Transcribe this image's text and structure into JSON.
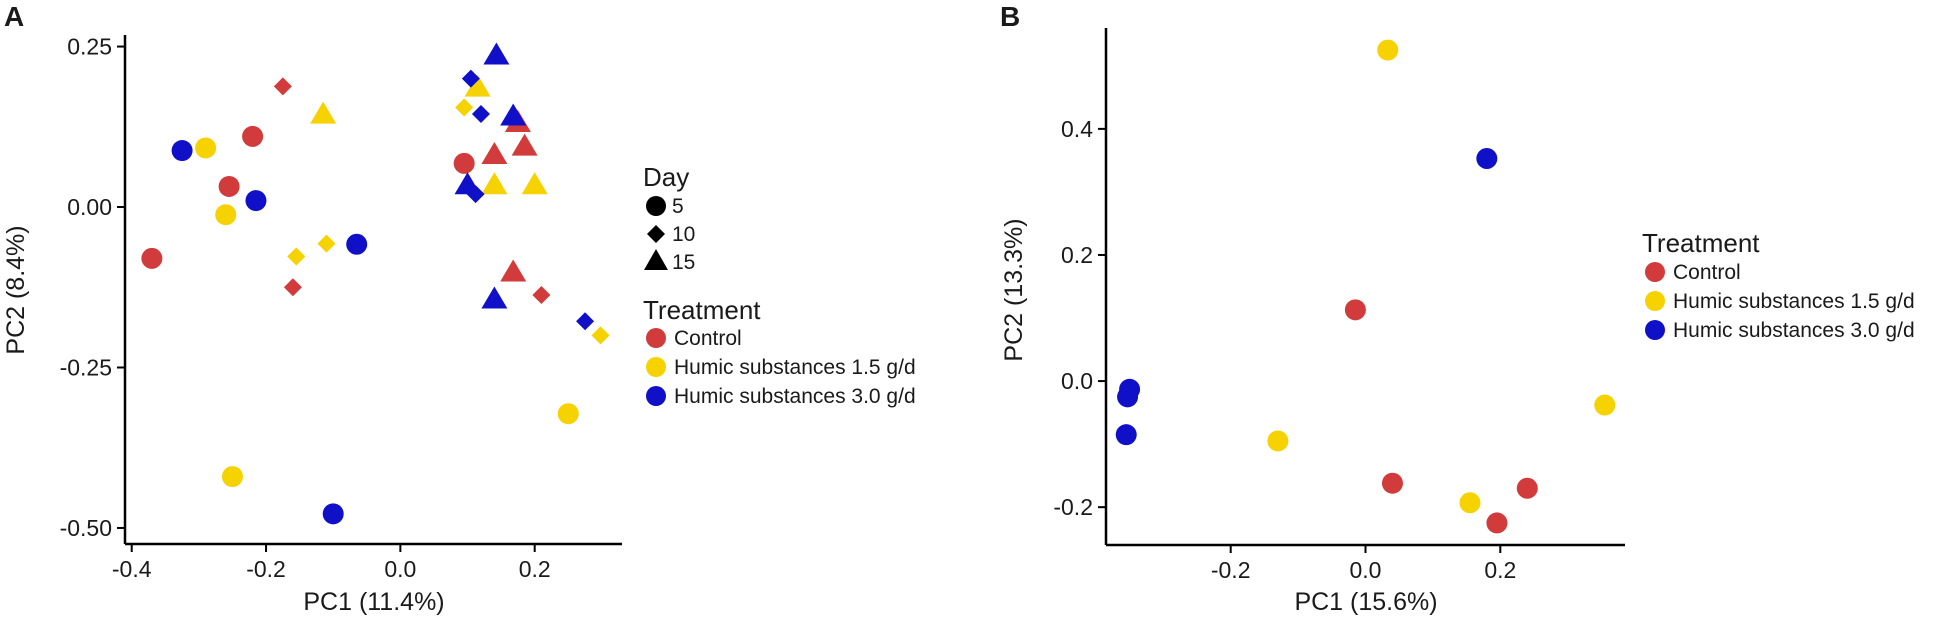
{
  "colors": {
    "Control": "#d13b3b",
    "Humic substances 1.5 g/d": "#f5d200",
    "Humic substances 3.0 g/d": "#1010c8",
    "axis": "#000000",
    "text": "#1a1a1a"
  },
  "chart_data": [
    {
      "type": "scatter",
      "panel": "A",
      "xlabel": "PC1 (11.4%)",
      "ylabel": "PC2 (8.4%)",
      "xlim": [
        -0.41,
        0.33
      ],
      "ylim": [
        -0.525,
        0.268
      ],
      "xticks": [
        -0.4,
        -0.2,
        0.0,
        0.2
      ],
      "xtick_labels": [
        "-0.4",
        "-0.2",
        "0.0",
        "0.2"
      ],
      "yticks": [
        0.25,
        0.0,
        -0.25,
        -0.5
      ],
      "ytick_labels": [
        "0.25",
        "0.00",
        "-0.25",
        "-0.50"
      ],
      "legend_day": {
        "title": "Day",
        "items": [
          {
            "shape": "circle",
            "label": "5"
          },
          {
            "shape": "diamond",
            "label": "10"
          },
          {
            "shape": "triangle",
            "label": "15"
          }
        ]
      },
      "legend_treatment": {
        "title": "Treatment",
        "items": [
          "Control",
          "Humic substances 1.5 g/d",
          "Humic substances 3.0 g/d"
        ]
      },
      "points": [
        {
          "x": -0.37,
          "y": -0.08,
          "shape": "circle",
          "group": "Control"
        },
        {
          "x": -0.255,
          "y": 0.032,
          "shape": "circle",
          "group": "Control"
        },
        {
          "x": -0.22,
          "y": 0.11,
          "shape": "circle",
          "group": "Control"
        },
        {
          "x": 0.095,
          "y": 0.068,
          "shape": "circle",
          "group": "Control"
        },
        {
          "x": -0.175,
          "y": 0.188,
          "shape": "diamond",
          "group": "Control"
        },
        {
          "x": -0.16,
          "y": -0.125,
          "shape": "diamond",
          "group": "Control"
        },
        {
          "x": 0.21,
          "y": -0.137,
          "shape": "diamond",
          "group": "Control"
        },
        {
          "x": 0.175,
          "y": 0.13,
          "shape": "triangle",
          "group": "Control"
        },
        {
          "x": 0.185,
          "y": 0.093,
          "shape": "triangle",
          "group": "Control"
        },
        {
          "x": 0.14,
          "y": 0.08,
          "shape": "triangle",
          "group": "Control"
        },
        {
          "x": 0.168,
          "y": -0.103,
          "shape": "triangle",
          "group": "Control"
        },
        {
          "x": -0.29,
          "y": 0.092,
          "shape": "circle",
          "group": "Humic substances 1.5 g/d"
        },
        {
          "x": -0.26,
          "y": -0.012,
          "shape": "circle",
          "group": "Humic substances 1.5 g/d"
        },
        {
          "x": 0.25,
          "y": -0.322,
          "shape": "circle",
          "group": "Humic substances 1.5 g/d"
        },
        {
          "x": -0.25,
          "y": -0.42,
          "shape": "circle",
          "group": "Humic substances 1.5 g/d"
        },
        {
          "x": -0.155,
          "y": -0.077,
          "shape": "diamond",
          "group": "Humic substances 1.5 g/d"
        },
        {
          "x": -0.11,
          "y": -0.057,
          "shape": "diamond",
          "group": "Humic substances 1.5 g/d"
        },
        {
          "x": 0.095,
          "y": 0.155,
          "shape": "diamond",
          "group": "Humic substances 1.5 g/d"
        },
        {
          "x": 0.298,
          "y": -0.2,
          "shape": "diamond",
          "group": "Humic substances 1.5 g/d"
        },
        {
          "x": -0.115,
          "y": 0.143,
          "shape": "triangle",
          "group": "Humic substances 1.5 g/d"
        },
        {
          "x": 0.115,
          "y": 0.185,
          "shape": "triangle",
          "group": "Humic substances 1.5 g/d"
        },
        {
          "x": 0.14,
          "y": 0.033,
          "shape": "triangle",
          "group": "Humic substances 1.5 g/d"
        },
        {
          "x": 0.2,
          "y": 0.033,
          "shape": "triangle",
          "group": "Humic substances 1.5 g/d"
        },
        {
          "x": -0.325,
          "y": 0.088,
          "shape": "circle",
          "group": "Humic substances 3.0 g/d"
        },
        {
          "x": -0.215,
          "y": 0.01,
          "shape": "circle",
          "group": "Humic substances 3.0 g/d"
        },
        {
          "x": -0.065,
          "y": -0.058,
          "shape": "circle",
          "group": "Humic substances 3.0 g/d"
        },
        {
          "x": -0.1,
          "y": -0.478,
          "shape": "circle",
          "group": "Humic substances 3.0 g/d"
        },
        {
          "x": 0.105,
          "y": 0.2,
          "shape": "diamond",
          "group": "Humic substances 3.0 g/d"
        },
        {
          "x": 0.12,
          "y": 0.145,
          "shape": "diamond",
          "group": "Humic substances 3.0 g/d"
        },
        {
          "x": 0.112,
          "y": 0.02,
          "shape": "diamond",
          "group": "Humic substances 3.0 g/d"
        },
        {
          "x": 0.275,
          "y": -0.178,
          "shape": "diamond",
          "group": "Humic substances 3.0 g/d"
        },
        {
          "x": 0.143,
          "y": 0.235,
          "shape": "triangle",
          "group": "Humic substances 3.0 g/d"
        },
        {
          "x": 0.168,
          "y": 0.14,
          "shape": "triangle",
          "group": "Humic substances 3.0 g/d"
        },
        {
          "x": 0.1,
          "y": 0.033,
          "shape": "triangle",
          "group": "Humic substances 3.0 g/d"
        },
        {
          "x": 0.14,
          "y": -0.145,
          "shape": "triangle",
          "group": "Humic substances 3.0 g/d"
        }
      ]
    },
    {
      "type": "scatter",
      "panel": "B",
      "xlabel": "PC1 (15.6%)",
      "ylabel": "PC2 (13.3%)",
      "xlim": [
        -0.385,
        0.385
      ],
      "ylim": [
        -0.26,
        0.56
      ],
      "xticks": [
        -0.2,
        0.0,
        0.2
      ],
      "xtick_labels": [
        "-0.2",
        "0.0",
        "0.2"
      ],
      "yticks": [
        0.4,
        0.2,
        0.0,
        -0.2
      ],
      "ytick_labels": [
        "0.4",
        "0.2",
        "0.0",
        "-0.2"
      ],
      "legend_treatment": {
        "title": "Treatment",
        "items": [
          "Control",
          "Humic substances 1.5 g/d",
          "Humic substances 3.0 g/d"
        ]
      },
      "points": [
        {
          "x": -0.015,
          "y": 0.113,
          "shape": "circle",
          "group": "Control"
        },
        {
          "x": 0.04,
          "y": -0.162,
          "shape": "circle",
          "group": "Control"
        },
        {
          "x": 0.195,
          "y": -0.225,
          "shape": "circle",
          "group": "Control"
        },
        {
          "x": 0.24,
          "y": -0.17,
          "shape": "circle",
          "group": "Control"
        },
        {
          "x": 0.033,
          "y": 0.525,
          "shape": "circle",
          "group": "Humic substances 1.5 g/d"
        },
        {
          "x": -0.13,
          "y": -0.095,
          "shape": "circle",
          "group": "Humic substances 1.5 g/d"
        },
        {
          "x": 0.155,
          "y": -0.193,
          "shape": "circle",
          "group": "Humic substances 1.5 g/d"
        },
        {
          "x": 0.355,
          "y": -0.038,
          "shape": "circle",
          "group": "Humic substances 1.5 g/d"
        },
        {
          "x": 0.18,
          "y": 0.353,
          "shape": "circle",
          "group": "Humic substances 3.0 g/d"
        },
        {
          "x": -0.35,
          "y": -0.013,
          "shape": "circle",
          "group": "Humic substances 3.0 g/d"
        },
        {
          "x": -0.353,
          "y": -0.025,
          "shape": "circle",
          "group": "Humic substances 3.0 g/d"
        },
        {
          "x": -0.355,
          "y": -0.085,
          "shape": "circle",
          "group": "Humic substances 3.0 g/d"
        }
      ]
    }
  ]
}
